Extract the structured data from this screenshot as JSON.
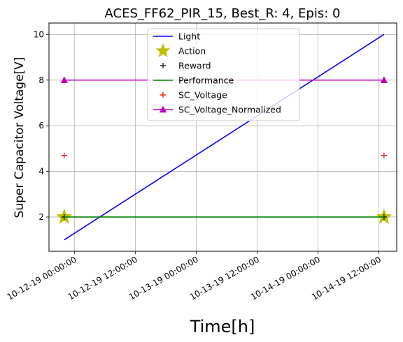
{
  "chart_data": {
    "type": "line",
    "title": "ACES_FF62_PIR_15, Best_R: 4, Epis: 0",
    "xlabel": "Time[h]",
    "ylabel": "Super Capacitor Voltage[V]",
    "x": [
      "2019-10-11 22:00:00",
      "2019-10-14 13:00:00"
    ],
    "xlim": [
      "2019-10-11 19:00:00",
      "2019-10-14 15:30:00"
    ],
    "ylim": [
      0.5,
      10.5
    ],
    "x_tick_labels": [
      "10-12-19 00:00:00",
      "10-12-19 12:00:00",
      "10-13-19 00:00:00",
      "10-13-19 12:00:00",
      "10-14-19 00:00:00",
      "10-14-19 12:00:00"
    ],
    "x_ticks": [
      "2019-10-12 00:00:00",
      "2019-10-12 12:00:00",
      "2019-10-13 00:00:00",
      "2019-10-13 12:00:00",
      "2019-10-14 00:00:00",
      "2019-10-14 12:00:00"
    ],
    "y_ticks": [
      2,
      4,
      6,
      8,
      10
    ],
    "y_tick_labels": [
      "2",
      "4",
      "6",
      "8",
      "10"
    ],
    "grid": true,
    "legend_position": "top-center",
    "series": [
      {
        "name": "Light",
        "values": [
          1,
          10
        ],
        "color": "#0000ff",
        "style": "line",
        "marker": "none"
      },
      {
        "name": "Action",
        "values": [
          2,
          2
        ],
        "color": "#bfbf00",
        "style": "none",
        "marker": "star"
      },
      {
        "name": "Reward",
        "values": [
          2,
          2
        ],
        "color": "#000000",
        "style": "none",
        "marker": "plus"
      },
      {
        "name": "Performance",
        "values": [
          2,
          2
        ],
        "color": "#008000",
        "style": "line",
        "marker": "none"
      },
      {
        "name": "SC_Voltage",
        "values": [
          4.7,
          4.7
        ],
        "color": "#ff0000",
        "style": "none",
        "marker": "plus"
      },
      {
        "name": "SC_Voltage_Normalized",
        "values": [
          8,
          8
        ],
        "color": "#bf00bf",
        "style": "line",
        "marker": "triangle"
      }
    ]
  }
}
